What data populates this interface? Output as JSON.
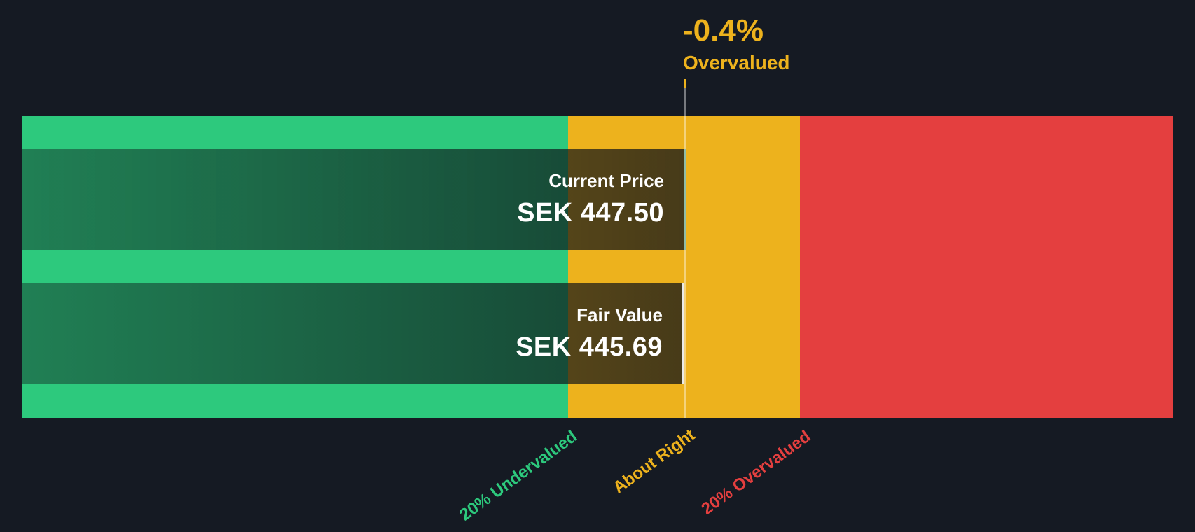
{
  "colors": {
    "bg": "#151a23",
    "green": "#2dc97d",
    "amber": "#edb21d",
    "red": "#e43f3f",
    "white": "#ffffff"
  },
  "chart_data": {
    "type": "valuation-band",
    "currency": "SEK",
    "current_price": 447.5,
    "fair_value": 445.69,
    "discount_percent": -0.4,
    "annotation": {
      "percent": "-0.4%",
      "status": "Overvalued"
    },
    "bars": [
      {
        "label": "Current Price",
        "value": "SEK 447.50"
      },
      {
        "label": "Fair Value",
        "value": "SEK 445.69"
      }
    ],
    "zones": [
      {
        "label": "20% Undervalued",
        "color": "#2dc97d",
        "fraction": 0.47
      },
      {
        "label": "About Right",
        "color": "#edb21d",
        "fraction": 0.2
      },
      {
        "label": "20% Overvalued",
        "color": "#e43f3f",
        "fraction": 0.33
      }
    ],
    "legend_position": "bottom",
    "grid": false
  }
}
